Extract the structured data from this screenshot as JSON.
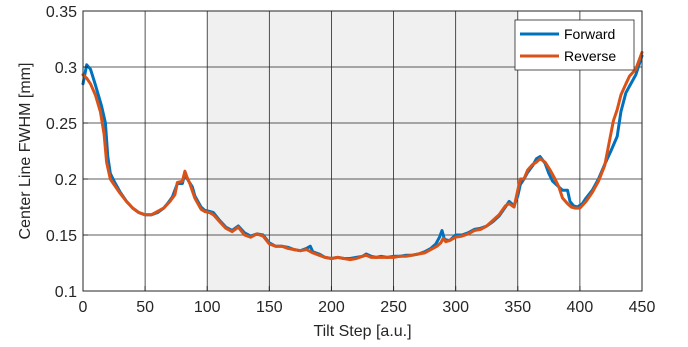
{
  "chart_data": {
    "type": "line",
    "title": "",
    "xlabel": "Tilt Step [a.u.]",
    "ylabel": "Center Line FWHM [mm]",
    "xlim": [
      0,
      450
    ],
    "ylim": [
      0.1,
      0.35
    ],
    "xticks": [
      0,
      50,
      100,
      150,
      200,
      250,
      300,
      350,
      400,
      450
    ],
    "yticks": [
      0.1,
      0.15,
      0.2,
      0.25,
      0.3,
      0.35
    ],
    "xtick_labels": [
      "0",
      "50",
      "100",
      "150",
      "200",
      "250",
      "300",
      "350",
      "400",
      "450"
    ],
    "ytick_labels": [
      "0.1",
      "0.15",
      "0.2",
      "0.25",
      "0.3",
      "0.35"
    ],
    "grid": true,
    "shaded_region": {
      "x": [
        100,
        350
      ],
      "color": "#f0f0f0"
    },
    "legend": {
      "position": "top-right"
    },
    "series": [
      {
        "name": "Forward",
        "color": "#0072BD",
        "points": [
          [
            0,
            0.285
          ],
          [
            3,
            0.302
          ],
          [
            6,
            0.298
          ],
          [
            10,
            0.284
          ],
          [
            15,
            0.265
          ],
          [
            18,
            0.25
          ],
          [
            20,
            0.22
          ],
          [
            22,
            0.205
          ],
          [
            25,
            0.198
          ],
          [
            30,
            0.188
          ],
          [
            35,
            0.18
          ],
          [
            40,
            0.174
          ],
          [
            45,
            0.17
          ],
          [
            50,
            0.168
          ],
          [
            55,
            0.168
          ],
          [
            60,
            0.17
          ],
          [
            65,
            0.174
          ],
          [
            68,
            0.178
          ],
          [
            72,
            0.184
          ],
          [
            74,
            0.19
          ],
          [
            76,
            0.196
          ],
          [
            80,
            0.196
          ],
          [
            82,
            0.205
          ],
          [
            84,
            0.2
          ],
          [
            88,
            0.193
          ],
          [
            90,
            0.185
          ],
          [
            95,
            0.175
          ],
          [
            98,
            0.172
          ],
          [
            102,
            0.171
          ],
          [
            105,
            0.17
          ],
          [
            110,
            0.163
          ],
          [
            115,
            0.157
          ],
          [
            120,
            0.154
          ],
          [
            125,
            0.158
          ],
          [
            130,
            0.152
          ],
          [
            135,
            0.149
          ],
          [
            140,
            0.151
          ],
          [
            145,
            0.15
          ],
          [
            150,
            0.143
          ],
          [
            155,
            0.14
          ],
          [
            160,
            0.14
          ],
          [
            165,
            0.139
          ],
          [
            170,
            0.137
          ],
          [
            175,
            0.136
          ],
          [
            180,
            0.138
          ],
          [
            183,
            0.14
          ],
          [
            185,
            0.135
          ],
          [
            190,
            0.133
          ],
          [
            195,
            0.13
          ],
          [
            200,
            0.129
          ],
          [
            205,
            0.13
          ],
          [
            210,
            0.129
          ],
          [
            215,
            0.129
          ],
          [
            220,
            0.13
          ],
          [
            225,
            0.131
          ],
          [
            228,
            0.133
          ],
          [
            232,
            0.131
          ],
          [
            236,
            0.13
          ],
          [
            240,
            0.131
          ],
          [
            245,
            0.13
          ],
          [
            250,
            0.131
          ],
          [
            255,
            0.131
          ],
          [
            260,
            0.132
          ],
          [
            265,
            0.132
          ],
          [
            270,
            0.133
          ],
          [
            275,
            0.135
          ],
          [
            280,
            0.138
          ],
          [
            284,
            0.142
          ],
          [
            287,
            0.148
          ],
          [
            289,
            0.154
          ],
          [
            291,
            0.146
          ],
          [
            295,
            0.145
          ],
          [
            300,
            0.15
          ],
          [
            305,
            0.15
          ],
          [
            310,
            0.152
          ],
          [
            315,
            0.155
          ],
          [
            320,
            0.156
          ],
          [
            325,
            0.158
          ],
          [
            330,
            0.162
          ],
          [
            335,
            0.167
          ],
          [
            340,
            0.175
          ],
          [
            343,
            0.18
          ],
          [
            347,
            0.176
          ],
          [
            350,
            0.185
          ],
          [
            352,
            0.195
          ],
          [
            355,
            0.2
          ],
          [
            358,
            0.206
          ],
          [
            362,
            0.212
          ],
          [
            365,
            0.218
          ],
          [
            368,
            0.22
          ],
          [
            372,
            0.214
          ],
          [
            375,
            0.205
          ],
          [
            378,
            0.198
          ],
          [
            382,
            0.194
          ],
          [
            386,
            0.19
          ],
          [
            390,
            0.19
          ],
          [
            392,
            0.18
          ],
          [
            395,
            0.176
          ],
          [
            398,
            0.175
          ],
          [
            402,
            0.178
          ],
          [
            405,
            0.183
          ],
          [
            410,
            0.19
          ],
          [
            415,
            0.2
          ],
          [
            420,
            0.213
          ],
          [
            425,
            0.225
          ],
          [
            430,
            0.238
          ],
          [
            433,
            0.26
          ],
          [
            437,
            0.277
          ],
          [
            440,
            0.283
          ],
          [
            445,
            0.293
          ],
          [
            450,
            0.31
          ]
        ]
      },
      {
        "name": "Reverse",
        "color": "#D95319",
        "points": [
          [
            0,
            0.293
          ],
          [
            3,
            0.29
          ],
          [
            6,
            0.285
          ],
          [
            10,
            0.275
          ],
          [
            14,
            0.26
          ],
          [
            17,
            0.24
          ],
          [
            19,
            0.215
          ],
          [
            22,
            0.2
          ],
          [
            25,
            0.195
          ],
          [
            30,
            0.187
          ],
          [
            35,
            0.18
          ],
          [
            40,
            0.174
          ],
          [
            45,
            0.17
          ],
          [
            50,
            0.168
          ],
          [
            55,
            0.168
          ],
          [
            60,
            0.171
          ],
          [
            65,
            0.174
          ],
          [
            70,
            0.18
          ],
          [
            74,
            0.186
          ],
          [
            76,
            0.197
          ],
          [
            80,
            0.198
          ],
          [
            82,
            0.207
          ],
          [
            84,
            0.201
          ],
          [
            86,
            0.196
          ],
          [
            90,
            0.183
          ],
          [
            95,
            0.173
          ],
          [
            98,
            0.171
          ],
          [
            102,
            0.17
          ],
          [
            105,
            0.168
          ],
          [
            110,
            0.162
          ],
          [
            115,
            0.156
          ],
          [
            120,
            0.153
          ],
          [
            125,
            0.157
          ],
          [
            130,
            0.15
          ],
          [
            135,
            0.148
          ],
          [
            140,
            0.151
          ],
          [
            145,
            0.149
          ],
          [
            150,
            0.142
          ],
          [
            155,
            0.14
          ],
          [
            160,
            0.14
          ],
          [
            165,
            0.138
          ],
          [
            170,
            0.137
          ],
          [
            175,
            0.136
          ],
          [
            180,
            0.137
          ],
          [
            185,
            0.134
          ],
          [
            190,
            0.132
          ],
          [
            195,
            0.13
          ],
          [
            200,
            0.129
          ],
          [
            205,
            0.13
          ],
          [
            210,
            0.129
          ],
          [
            215,
            0.128
          ],
          [
            220,
            0.129
          ],
          [
            225,
            0.131
          ],
          [
            228,
            0.132
          ],
          [
            232,
            0.13
          ],
          [
            236,
            0.13
          ],
          [
            240,
            0.13
          ],
          [
            245,
            0.13
          ],
          [
            250,
            0.13
          ],
          [
            255,
            0.131
          ],
          [
            260,
            0.131
          ],
          [
            265,
            0.132
          ],
          [
            270,
            0.133
          ],
          [
            275,
            0.134
          ],
          [
            280,
            0.137
          ],
          [
            285,
            0.14
          ],
          [
            288,
            0.143
          ],
          [
            290,
            0.147
          ],
          [
            292,
            0.144
          ],
          [
            295,
            0.145
          ],
          [
            300,
            0.148
          ],
          [
            305,
            0.149
          ],
          [
            310,
            0.151
          ],
          [
            315,
            0.154
          ],
          [
            320,
            0.155
          ],
          [
            325,
            0.158
          ],
          [
            330,
            0.163
          ],
          [
            335,
            0.168
          ],
          [
            340,
            0.176
          ],
          [
            343,
            0.178
          ],
          [
            347,
            0.175
          ],
          [
            350,
            0.19
          ],
          [
            352,
            0.2
          ],
          [
            355,
            0.2
          ],
          [
            358,
            0.208
          ],
          [
            362,
            0.213
          ],
          [
            365,
            0.215
          ],
          [
            368,
            0.218
          ],
          [
            372,
            0.215
          ],
          [
            376,
            0.208
          ],
          [
            380,
            0.2
          ],
          [
            383,
            0.193
          ],
          [
            386,
            0.183
          ],
          [
            390,
            0.178
          ],
          [
            393,
            0.175
          ],
          [
            396,
            0.174
          ],
          [
            400,
            0.174
          ],
          [
            405,
            0.18
          ],
          [
            410,
            0.188
          ],
          [
            415,
            0.198
          ],
          [
            420,
            0.212
          ],
          [
            424,
            0.235
          ],
          [
            427,
            0.252
          ],
          [
            430,
            0.262
          ],
          [
            433,
            0.275
          ],
          [
            437,
            0.285
          ],
          [
            440,
            0.292
          ],
          [
            445,
            0.298
          ],
          [
            450,
            0.313
          ]
        ]
      }
    ]
  }
}
